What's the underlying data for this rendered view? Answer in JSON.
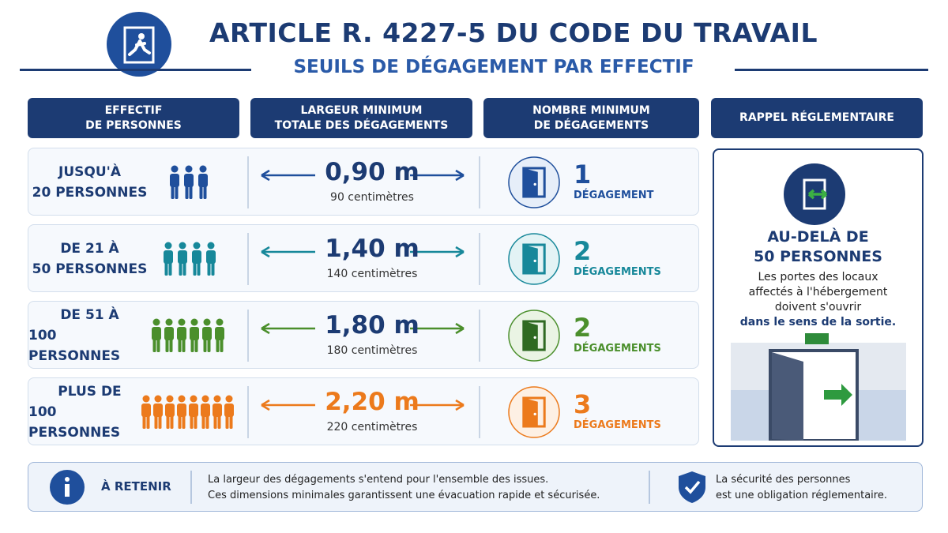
{
  "header": {
    "title": "ARTICLE R. 4227-5 DU CODE DU TRAVAIL",
    "subtitle": "SEUILS DE DÉGAGEMENT PAR EFFECTIF"
  },
  "columns": [
    [
      "EFFECTIF",
      "DE PERSONNES"
    ],
    [
      "LARGEUR MINIMUM",
      "TOTALE DES DÉGAGEMENTS"
    ],
    [
      "NOMBRE MINIMUM",
      "DE DÉGAGEMENTS"
    ],
    [
      "RAPPEL RÉGLEMENTAIRE"
    ]
  ],
  "rows": [
    {
      "label": [
        "JUSQU'À",
        "20 PERSONNES"
      ],
      "width": "0,90 m",
      "width_cm": "90 centimètres",
      "count": "1",
      "count_label": "DÉGAGEMENT"
    },
    {
      "label": [
        "DE 21 À",
        "50 PERSONNES"
      ],
      "width": "1,40 m",
      "width_cm": "140 centimètres",
      "count": "2",
      "count_label": "DÉGAGEMENTS"
    },
    {
      "label": [
        "DE 51 À",
        "100 PERSONNES"
      ],
      "width": "1,80 m",
      "width_cm": "180 centimètres",
      "count": "2",
      "count_label": "DÉGAGEMENTS"
    },
    {
      "label": [
        "PLUS DE",
        "100 PERSONNES"
      ],
      "width": "2,20 m",
      "width_cm": "220 centimètres",
      "count": "3",
      "count_label": "DÉGAGEMENTS"
    }
  ],
  "reminder": {
    "title": [
      "AU-DELÀ DE",
      "50 PERSONNES"
    ],
    "text": [
      "Les portes des locaux",
      "affectés à l'hébergement",
      "doivent s'ouvrir"
    ],
    "emphasis": "dans le sens de la sortie."
  },
  "footer": {
    "label": "À RETENIR",
    "text": [
      "La largeur des dégagements s'entend pour l'ensemble des issues.",
      "Ces dimensions minimales garantissent une évacuation rapide et sécurisée."
    ],
    "note": [
      "La sécurité des personnes",
      "est une obligation réglementaire."
    ]
  }
}
